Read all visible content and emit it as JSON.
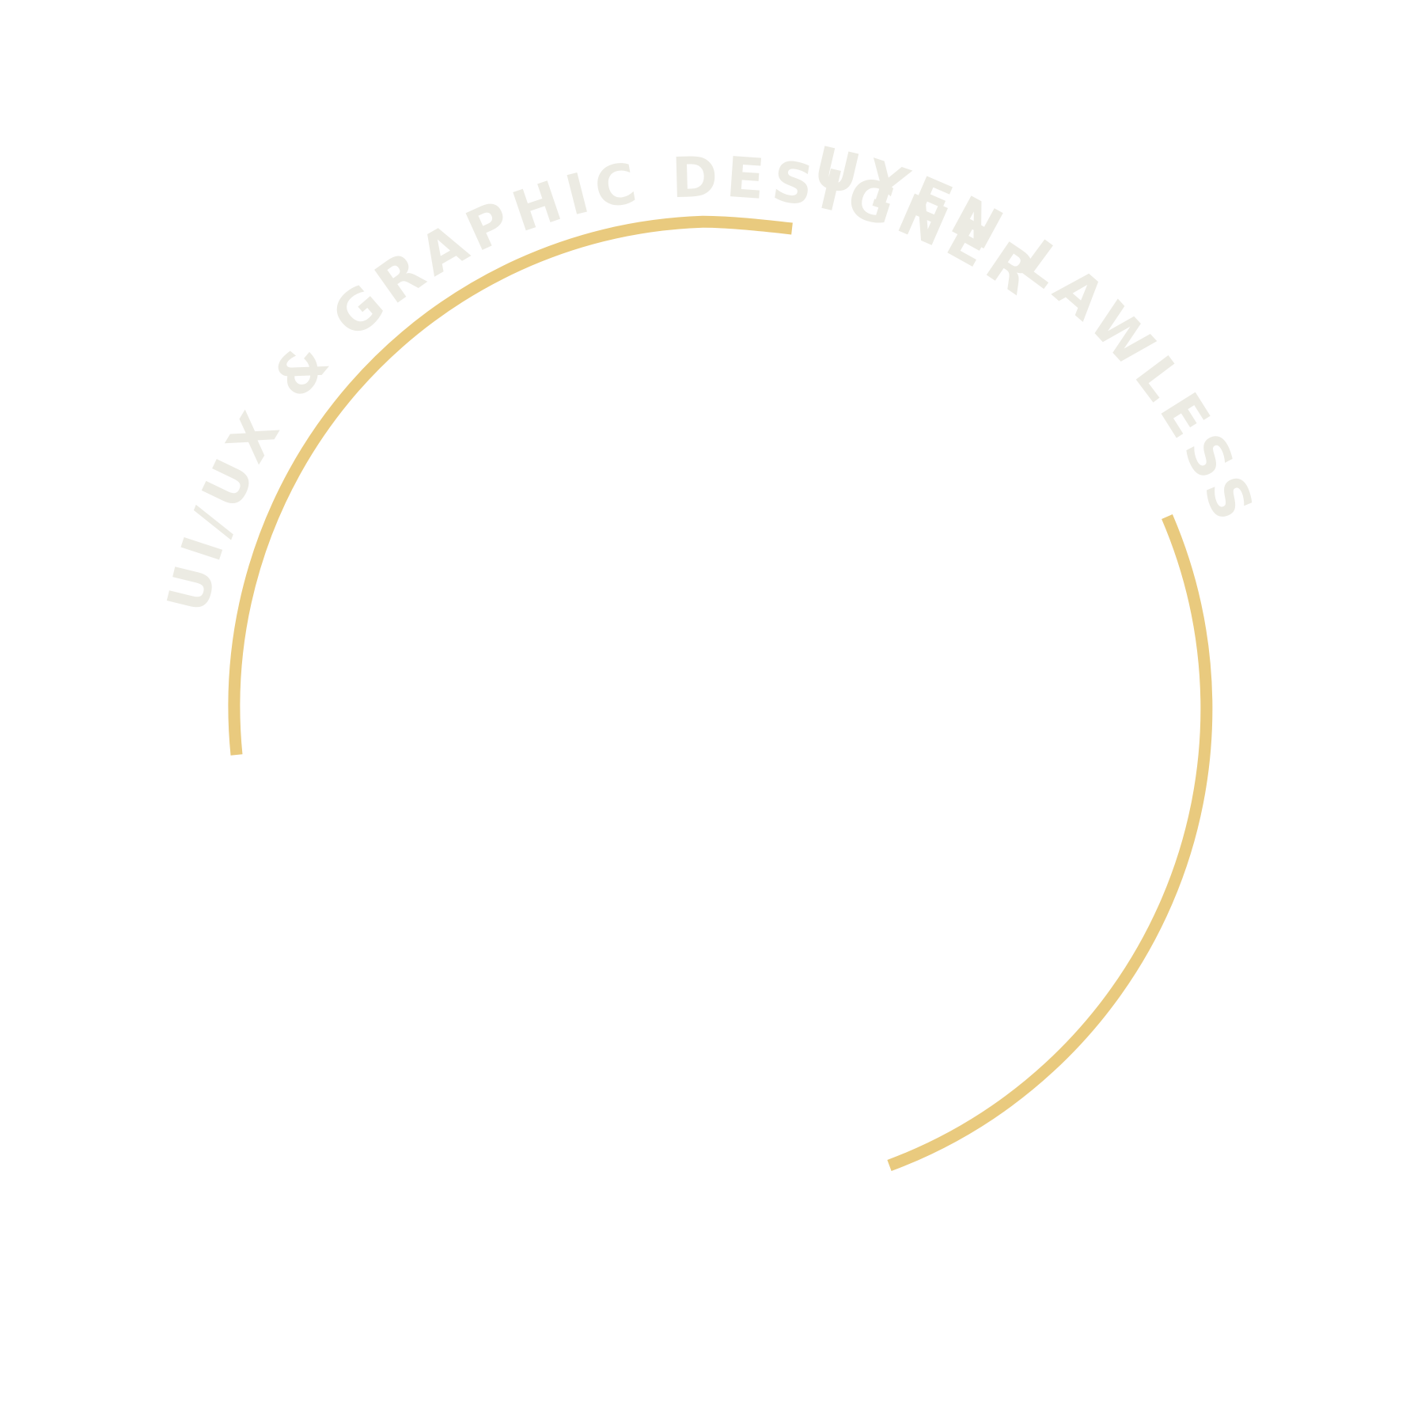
{
  "logo": {
    "name": "UYEN LAWLESS",
    "tagline": "UI/UX & GRAPHIC DESIGNER"
  },
  "colors": {
    "ring": "#E9CA7E",
    "text": "#ECEBE3",
    "background": "#FFFFFF"
  }
}
